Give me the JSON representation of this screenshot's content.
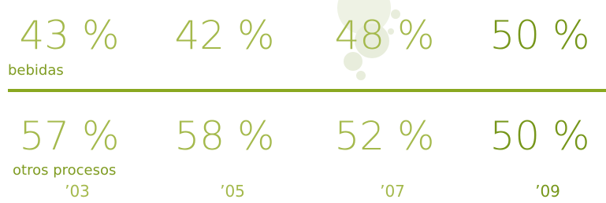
{
  "rows": [
    {
      "label": "bebidas",
      "values": [
        "43 %",
        "42 %",
        "48 %",
        "50 %"
      ]
    },
    {
      "label": "otros procesos",
      "values": [
        "57 %",
        "58 %",
        "52 %",
        "50 %"
      ]
    }
  ],
  "years": [
    "’03",
    "’05",
    "’07",
    "’09"
  ]
}
